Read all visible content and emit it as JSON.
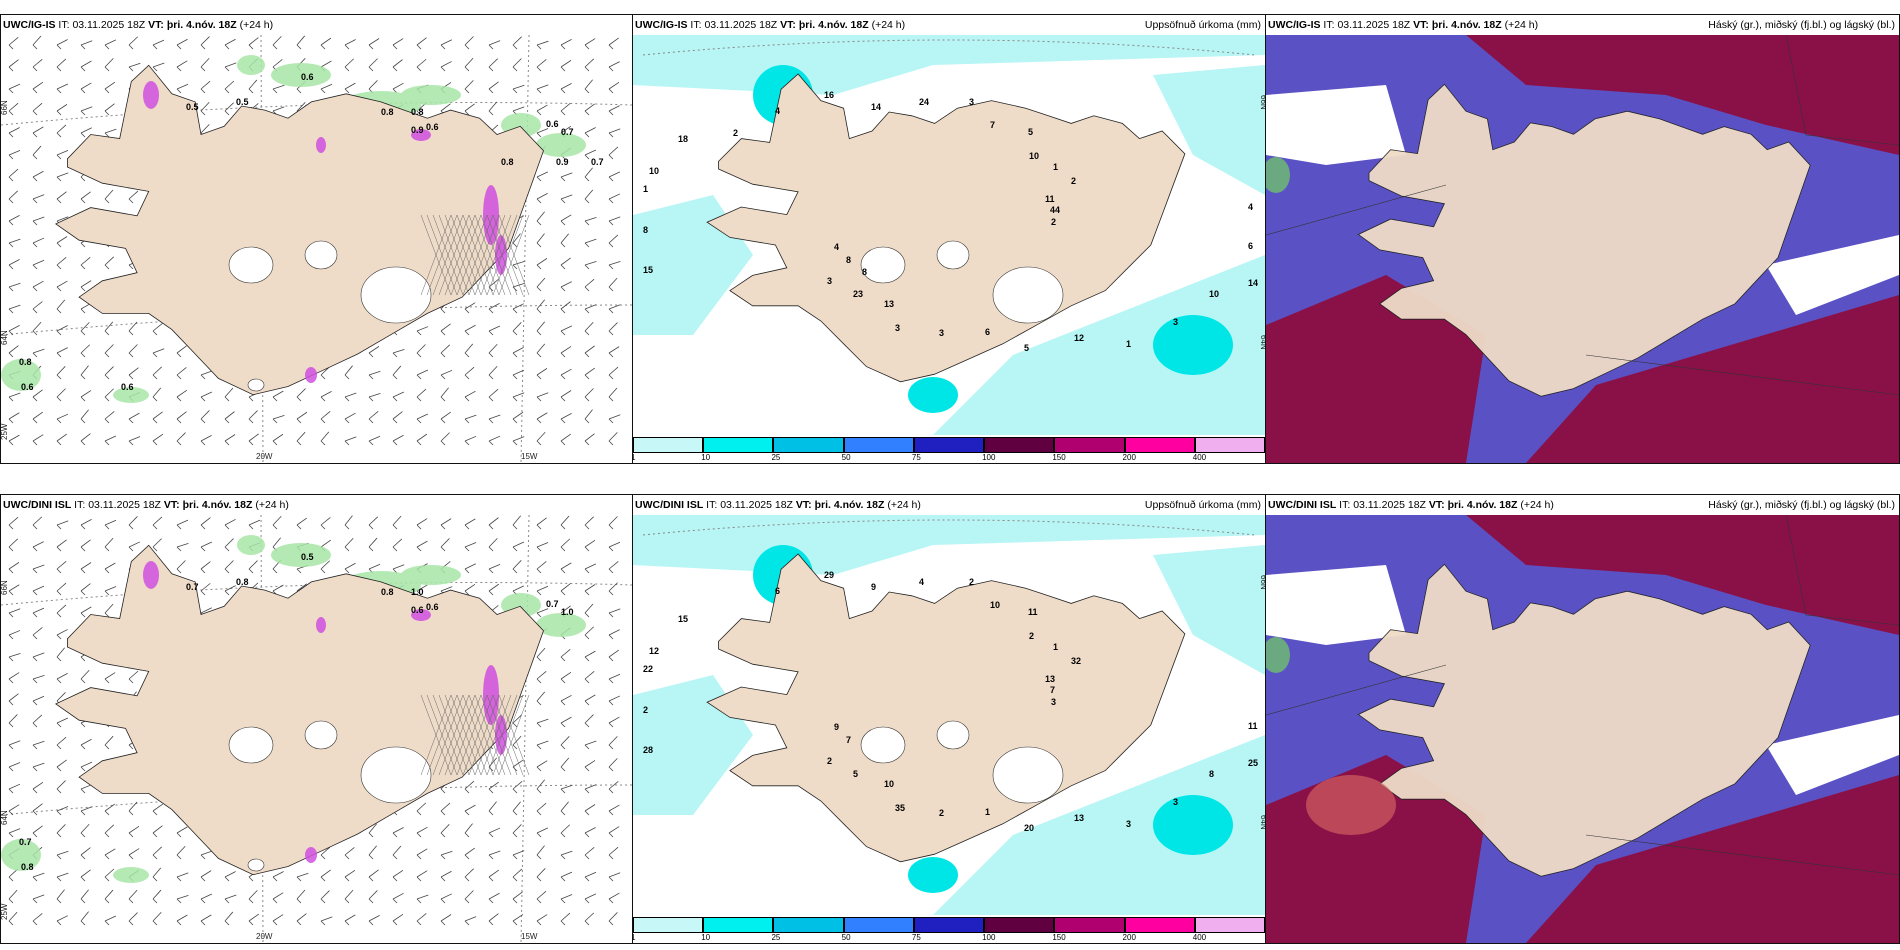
{
  "rows": [
    {
      "model": "UWC/IG-IS",
      "it_label": "IT:",
      "it_value": "03.11.2025 18Z",
      "vt_label": "VT:",
      "vt_value": "þri. 4.nóv. 18Z",
      "lead": "(+24 h)",
      "panels": {
        "wind": {
          "title_right": "",
          "lat_labels": [
            "66N",
            "64N",
            "25W"
          ],
          "lon_labels": [
            "20W",
            "15W"
          ],
          "labels": [
            "0.6",
            "0.5",
            "0.5",
            "0.8",
            "0.6",
            "0.8",
            "0.9",
            "0.8",
            "0.6",
            "0.7",
            "0.6",
            "0.9",
            "0.8",
            "0.6",
            "0.7"
          ]
        },
        "precip": {
          "title_right": "Uppsöfnuð úrkoma (mm)",
          "lat_labels": [
            "66N",
            "64N"
          ],
          "labels": [
            "2",
            "3",
            "3",
            "1",
            "1",
            "2",
            "3",
            "16",
            "14",
            "4",
            "5",
            "5",
            "18",
            "44",
            "23",
            "24",
            "3",
            "8",
            "1",
            "3",
            "4",
            "6",
            "8",
            "7",
            "12",
            "10",
            "11",
            "13",
            "14",
            "10",
            "15",
            "10",
            "6",
            "2",
            "4",
            "8"
          ]
        },
        "clouds": {
          "title_right": "Háský (gr.), miðský (fj.bl.) og lágský (bl.)"
        }
      }
    },
    {
      "model": "UWC/DINI ISL",
      "it_label": "IT:",
      "it_value": "03.11.2025 18Z",
      "vt_label": "VT:",
      "vt_value": "þri. 4.nóv. 18Z",
      "lead": "(+24 h)",
      "panels": {
        "wind": {
          "title_right": "",
          "lat_labels": [
            "66N",
            "64N",
            "25W"
          ],
          "lon_labels": [
            "20W",
            "15W"
          ],
          "labels": [
            "0.5",
            "0.8",
            "0.7",
            "1.0",
            "0.7",
            "0.8",
            "0.6",
            "0.7",
            "0.6",
            "1.0",
            "0.8"
          ]
        },
        "precip": {
          "title_right": "Uppsöfnuð úrkoma (mm)",
          "lat_labels": [
            "66N",
            "64N"
          ],
          "labels": [
            "3",
            "2",
            "2",
            "3",
            "22",
            "32",
            "35",
            "29",
            "25",
            "9",
            "11",
            "20",
            "15",
            "7",
            "5",
            "4",
            "3",
            "2",
            "1",
            "2",
            "6",
            "11",
            "7",
            "10",
            "13",
            "12",
            "13",
            "10",
            "9",
            "8",
            "28",
            "2",
            "1"
          ]
        },
        "clouds": {
          "title_right": "Háský (gr.), miðský (fj.bl.) og lágský (bl.)"
        }
      }
    }
  ],
  "colorbar": {
    "ticks": [
      "1",
      "10",
      "25",
      "50",
      "75",
      "100",
      "150",
      "200",
      "400"
    ],
    "colors": [
      "#c8f7f7",
      "#00f0f0",
      "#00c0e6",
      "#3080ff",
      "#2020c0",
      "#600040",
      "#b00070",
      "#ff00a0",
      "#f0b0f0"
    ]
  },
  "colors": {
    "land": "#efdcc8",
    "precip_light": "#b8f5f5",
    "precip_mid": "#00e6e6",
    "cloud_high": "#8a1048",
    "cloud_mid": "#5a52c4",
    "cloud_low_green": "#6fbf6f",
    "wind_green": "#a8e6a8",
    "wind_magenta": "#d050e0"
  }
}
